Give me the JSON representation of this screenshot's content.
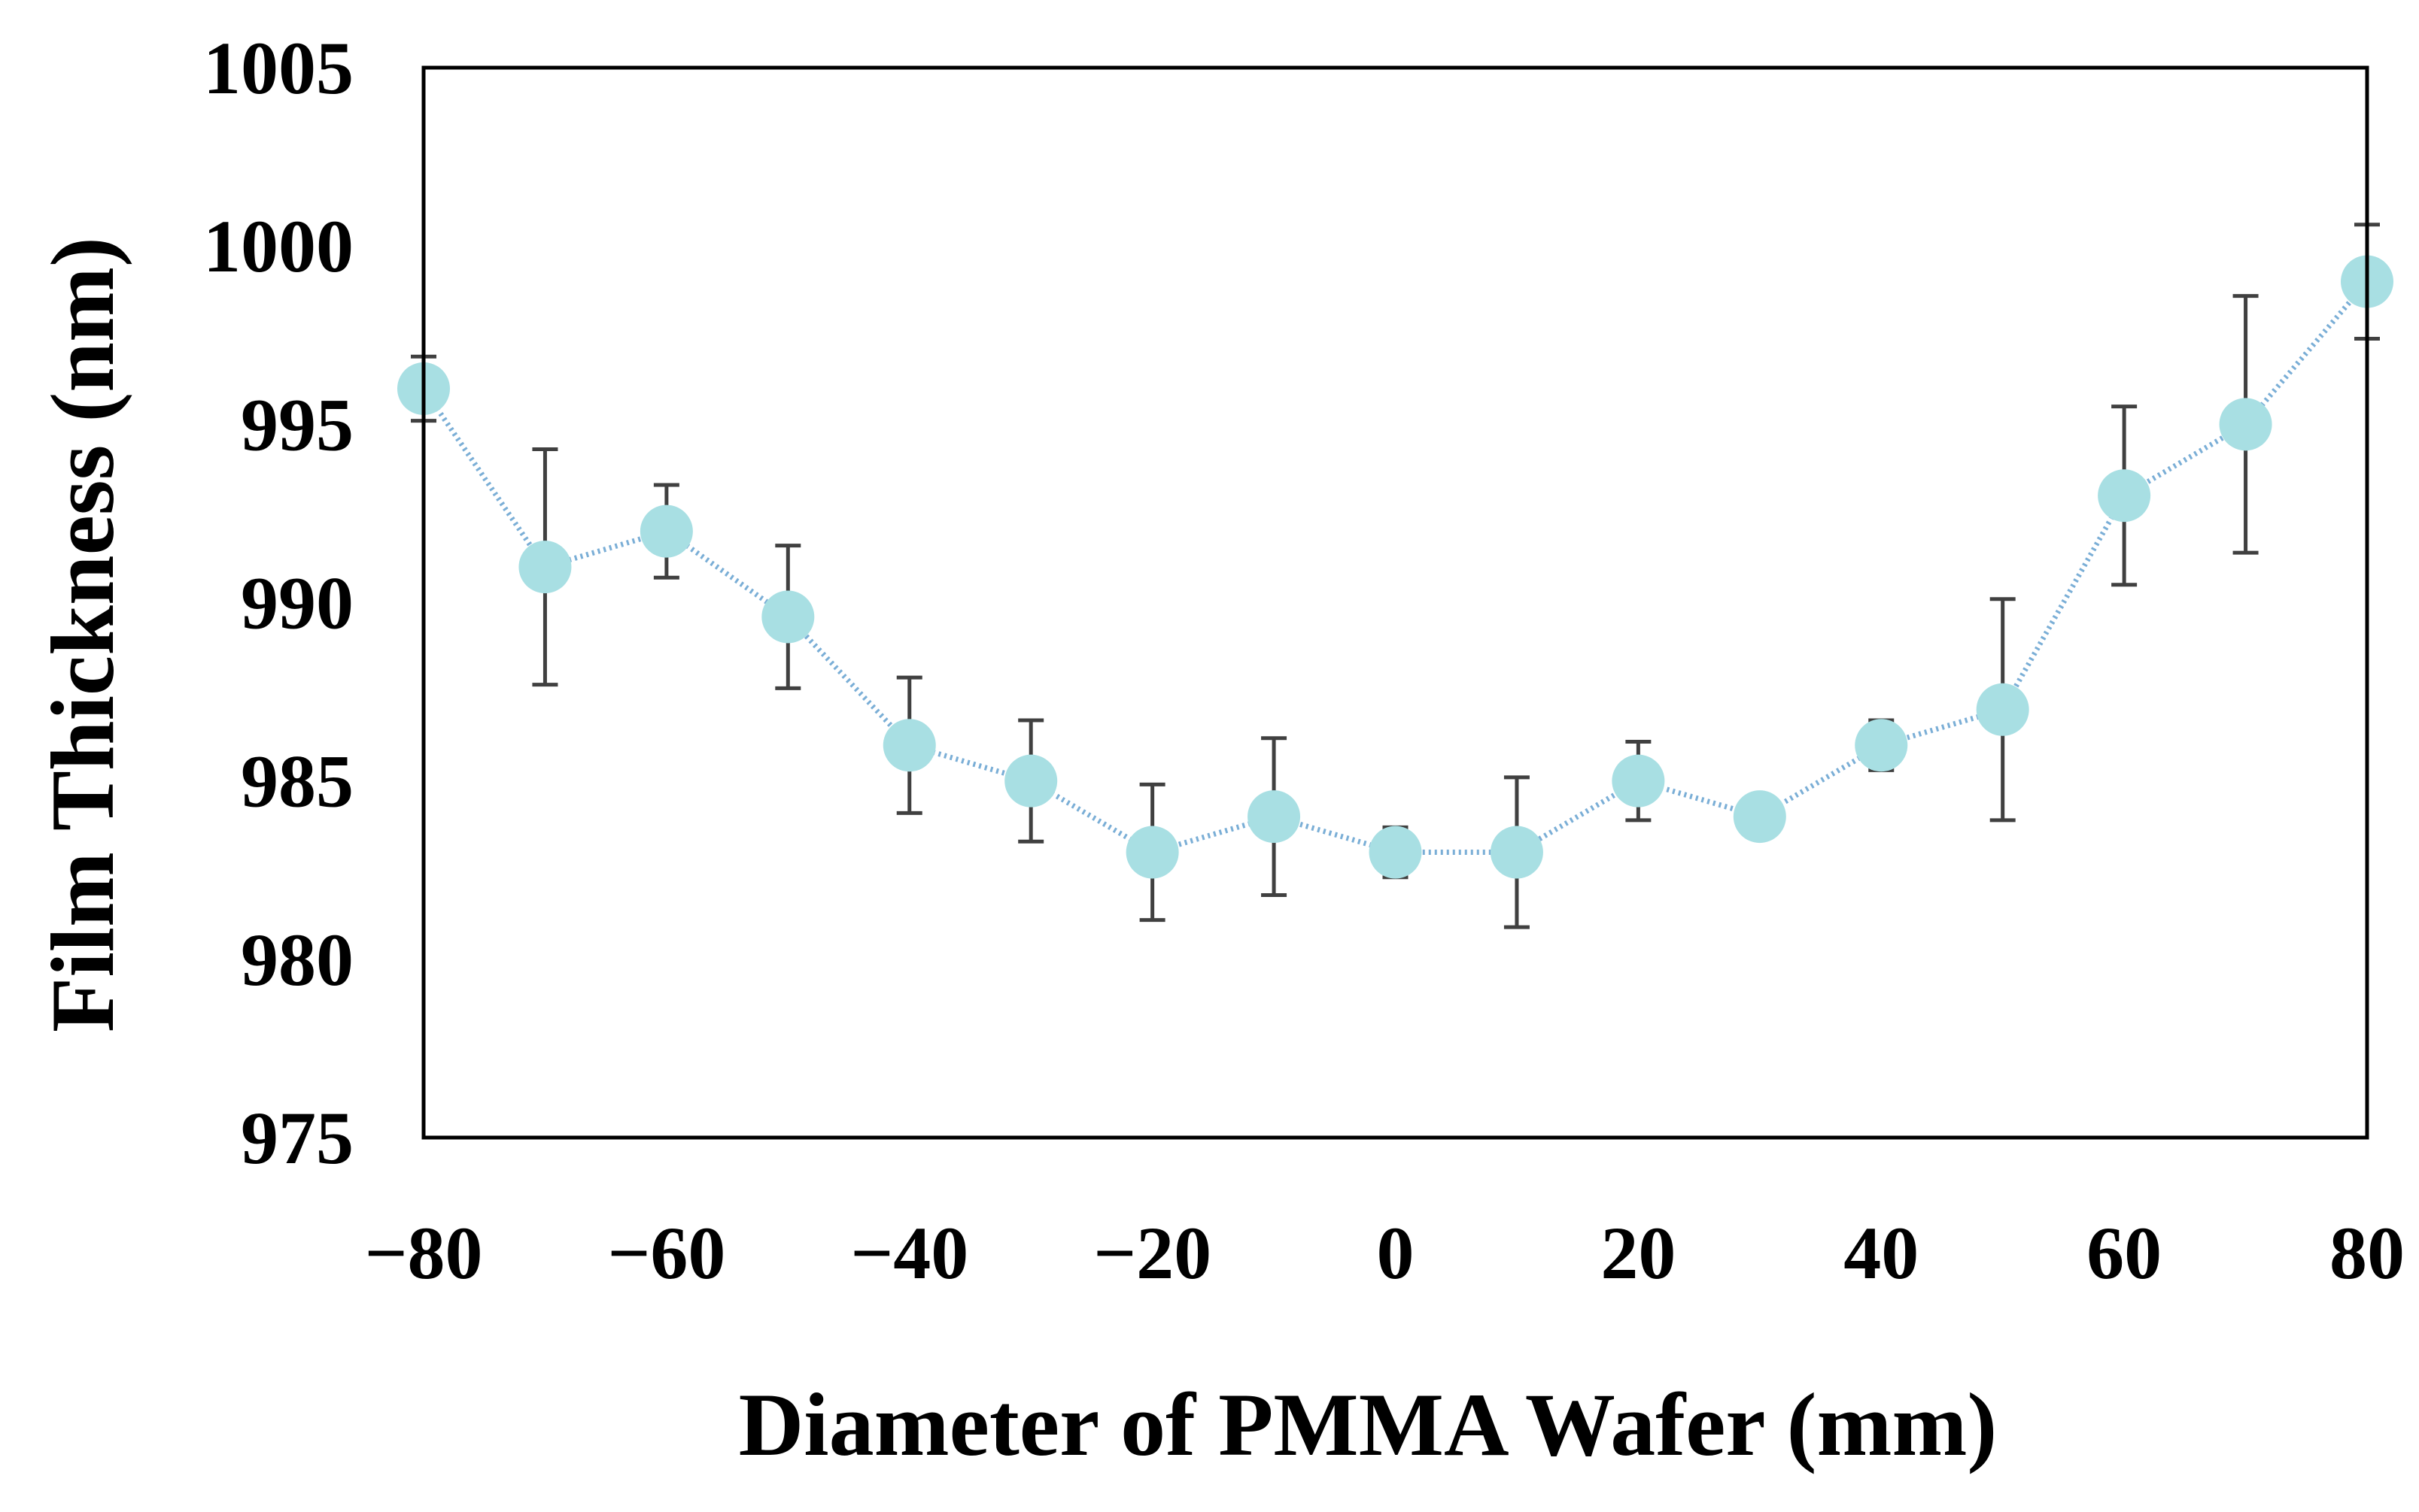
{
  "chart_data": {
    "type": "scatter",
    "title": "",
    "xlabel": "Diameter of PMMA Wafer (mm)",
    "ylabel": "Film Thickness (nm)",
    "xlim": [
      -80,
      80
    ],
    "ylim": [
      975,
      1005
    ],
    "xticks": [
      -80,
      -60,
      -40,
      -20,
      0,
      20,
      40,
      60,
      80
    ],
    "yticks": [
      975,
      980,
      985,
      990,
      995,
      1000,
      1005
    ],
    "xtick_labels": [
      "−80",
      "−60",
      "−40",
      "−20",
      "0",
      "20",
      "40",
      "60",
      "80"
    ],
    "ytick_labels": [
      "975",
      "980",
      "985",
      "990",
      "995",
      "1000",
      "1005"
    ],
    "grid": false,
    "series": [
      {
        "name": "Film Thickness",
        "line_style": "dotted",
        "marker": "circle",
        "marker_color": "#a8dfe3",
        "line_color": "#7aaed6",
        "points": [
          {
            "x": -80,
            "y": 996.0,
            "err": 0.9
          },
          {
            "x": -70,
            "y": 991.0,
            "err": 3.3
          },
          {
            "x": -60,
            "y": 992.0,
            "err": 1.3
          },
          {
            "x": -50,
            "y": 989.6,
            "err": 2.0
          },
          {
            "x": -40,
            "y": 986.0,
            "err": 1.9
          },
          {
            "x": -30,
            "y": 985.0,
            "err": 1.7
          },
          {
            "x": -20,
            "y": 983.0,
            "err": 1.9
          },
          {
            "x": -10,
            "y": 984.0,
            "err": 2.2
          },
          {
            "x": 0,
            "y": 983.0,
            "err": 0.7
          },
          {
            "x": 10,
            "y": 983.0,
            "err": 2.1
          },
          {
            "x": 20,
            "y": 985.0,
            "err": 1.1
          },
          {
            "x": 30,
            "y": 984.0,
            "err": 0.0
          },
          {
            "x": 40,
            "y": 986.0,
            "err": 0.7
          },
          {
            "x": 50,
            "y": 987.0,
            "err": 3.1
          },
          {
            "x": 60,
            "y": 993.0,
            "err": 2.5
          },
          {
            "x": 70,
            "y": 995.0,
            "err": 3.6
          },
          {
            "x": 80,
            "y": 999.0,
            "err": 1.6
          }
        ]
      }
    ],
    "errorbar_color": "#404040"
  }
}
